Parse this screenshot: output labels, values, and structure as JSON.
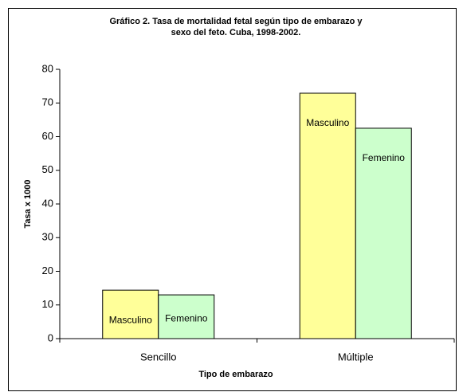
{
  "chart_data": {
    "type": "bar",
    "title": [
      "Gráfico 2. Tasa de mortalidad fetal según tipo de embarazo y",
      "sexo del feto. Cuba, 1998-2002."
    ],
    "x_label": "Tipo de embarazo",
    "y_label": "Tasa x 1000",
    "categories": [
      "Sencillo",
      "Múltiple"
    ],
    "series": [
      {
        "name": "Masculino",
        "color": "#ffff99",
        "values": [
          14.4,
          72.9
        ]
      },
      {
        "name": "Femenino",
        "color": "#ccffcc",
        "values": [
          13.0,
          62.5
        ]
      }
    ],
    "ylim": [
      0,
      80
    ],
    "yticks": [
      0,
      10,
      20,
      30,
      40,
      50,
      60,
      70,
      80
    ],
    "grid": false
  }
}
